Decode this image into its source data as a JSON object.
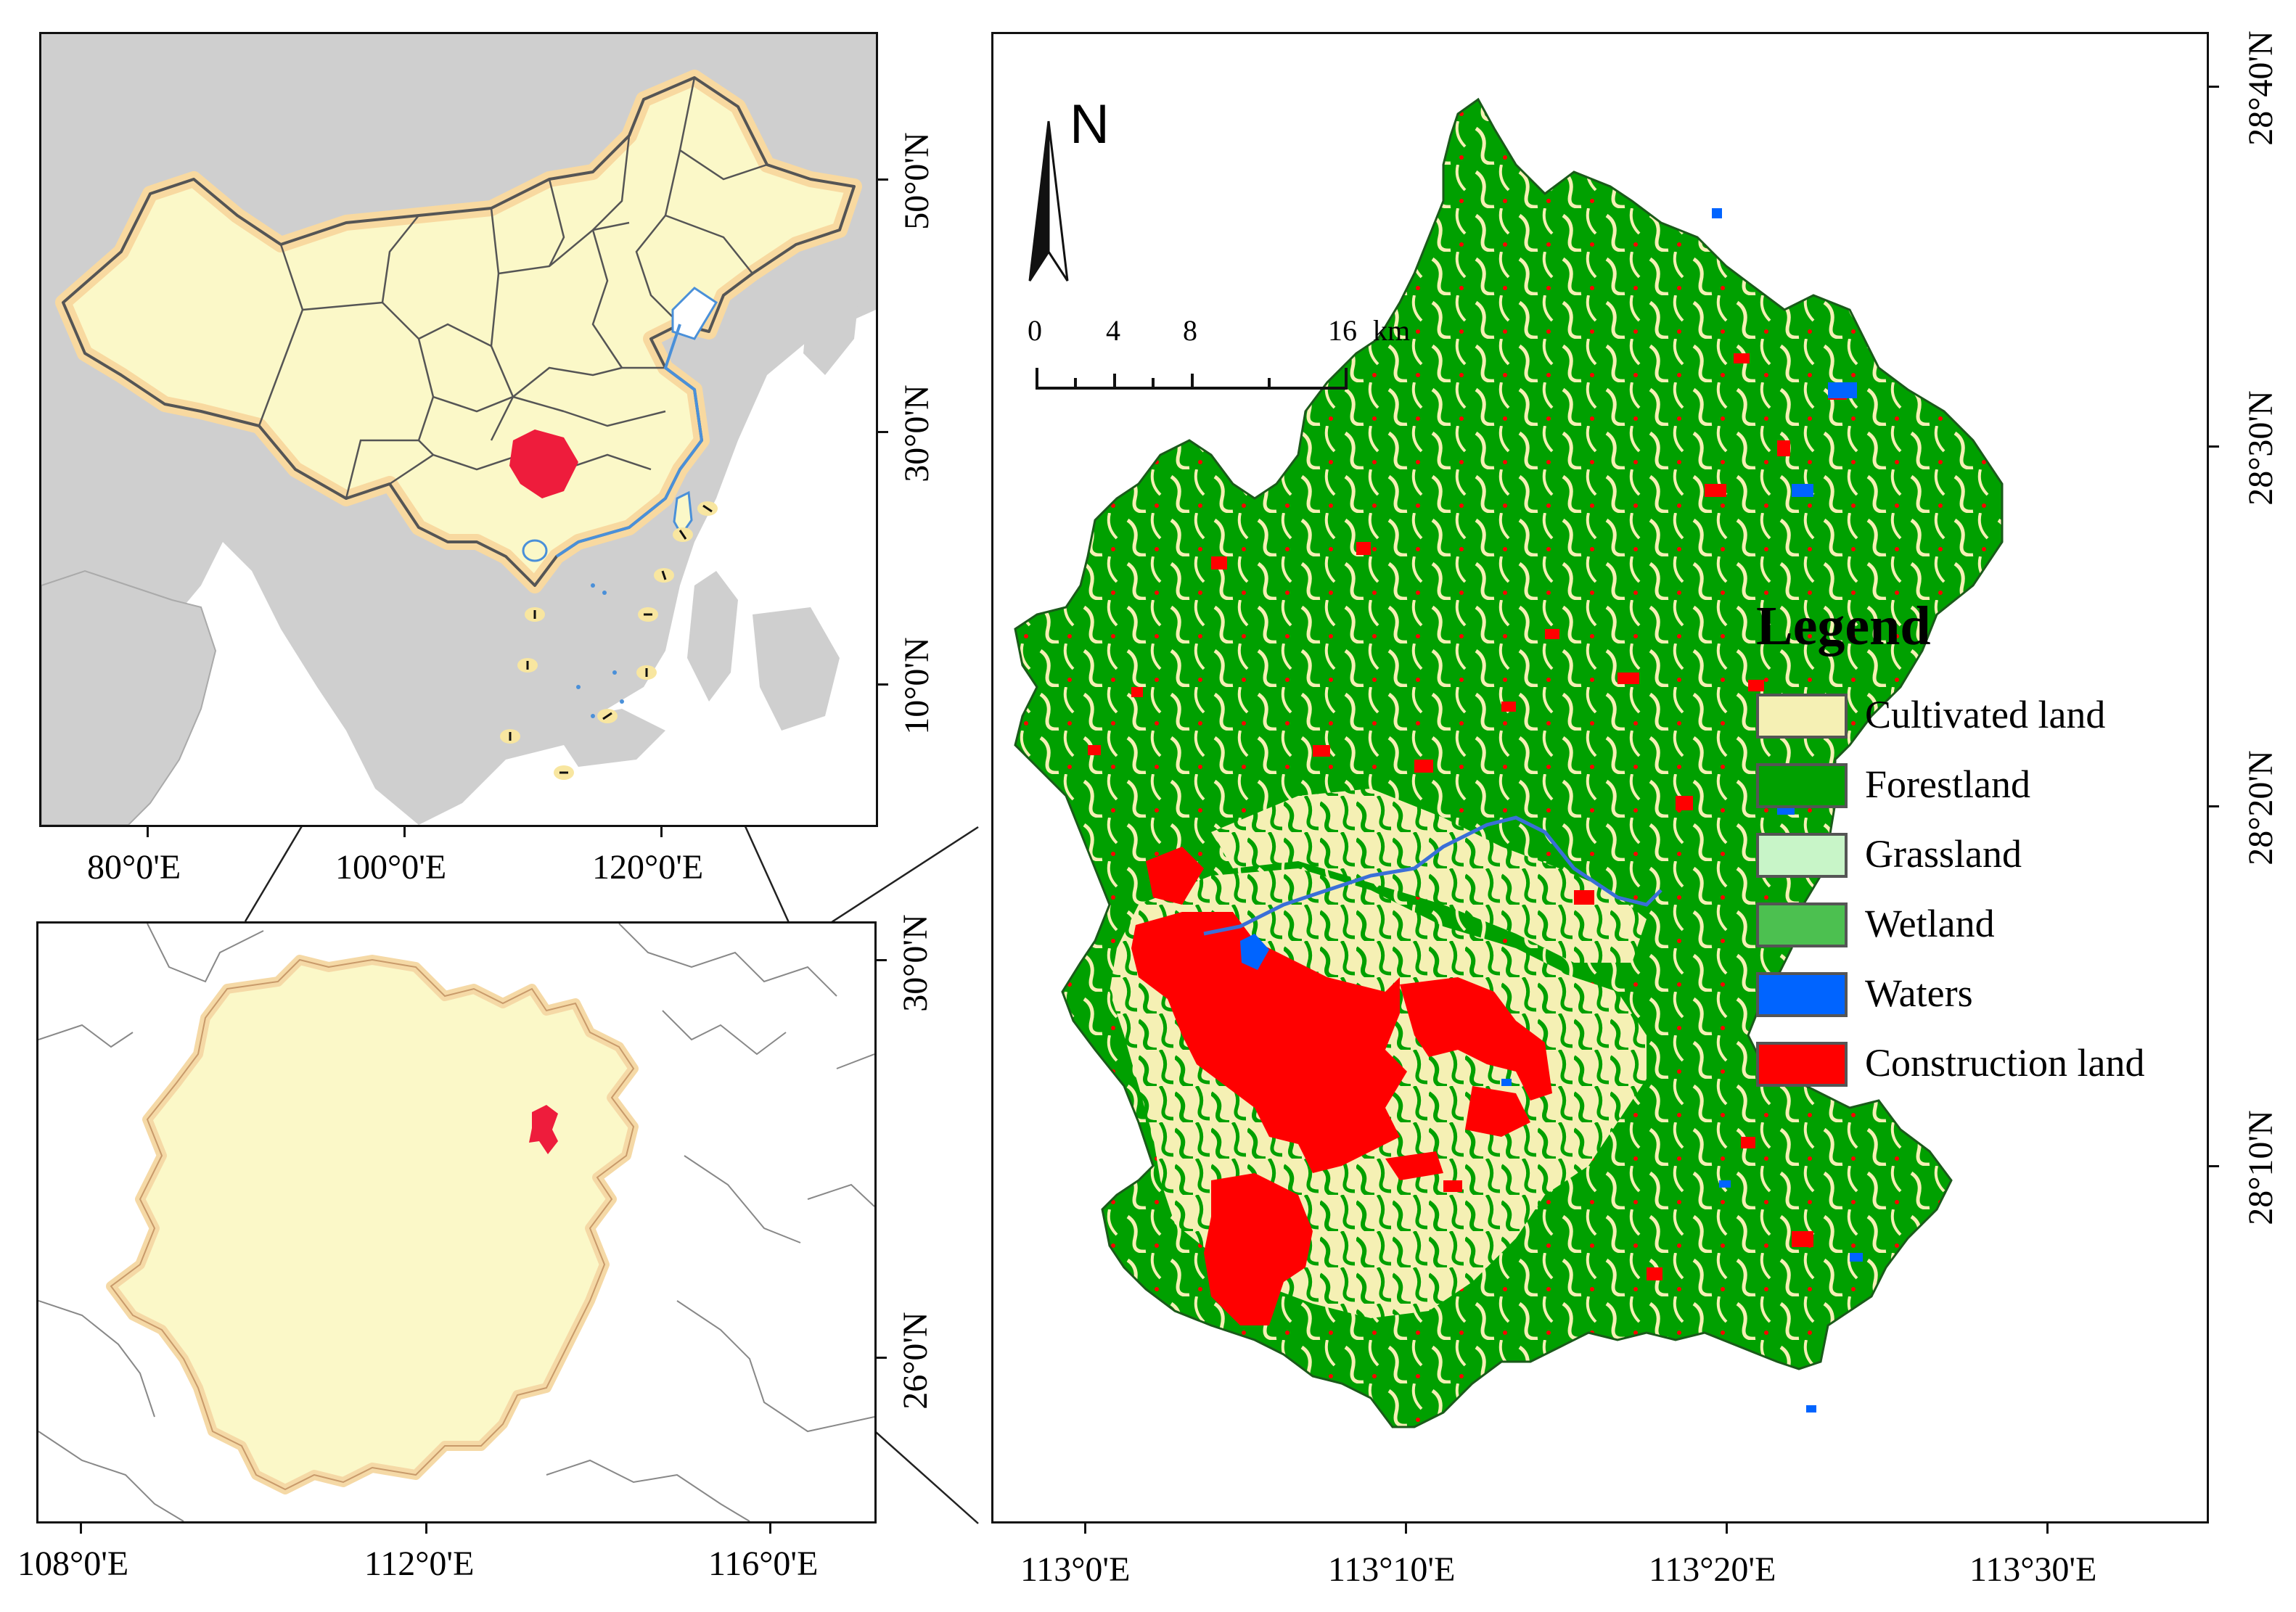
{
  "china_map": {
    "lon_labels": [
      "80°0'E",
      "100°0'E",
      "120°0'E"
    ],
    "lat_labels": [
      "50°0'N",
      "30°0'N",
      "10°0'N"
    ]
  },
  "hunan_map": {
    "lon_labels": [
      "108°0'E",
      "112°0'E",
      "116°0'E"
    ],
    "lat_labels": [
      "30°0'N",
      "26°0'N"
    ]
  },
  "study_map": {
    "lon_labels": [
      "113°0'E",
      "113°10'E",
      "113°20'E",
      "113°30'E"
    ],
    "lat_labels": [
      "28°40'N",
      "28°30'N",
      "28°20'N",
      "28°10'N"
    ],
    "north_label": "N",
    "scale": {
      "ticks": [
        "0",
        "4",
        "8",
        "16"
      ],
      "unit": "km"
    },
    "legend": {
      "title": "Legend",
      "items": [
        {
          "label": "Cultivated land",
          "color": "#f5f0b4"
        },
        {
          "label": "Forestland",
          "color": "#00a000"
        },
        {
          "label": "Grassland",
          "color": "#c8f5c8"
        },
        {
          "label": "Wetland",
          "color": "#4cc050"
        },
        {
          "label": "Waters",
          "color": "#0064ff"
        },
        {
          "label": "Construction land",
          "color": "#ff0000"
        }
      ]
    }
  }
}
